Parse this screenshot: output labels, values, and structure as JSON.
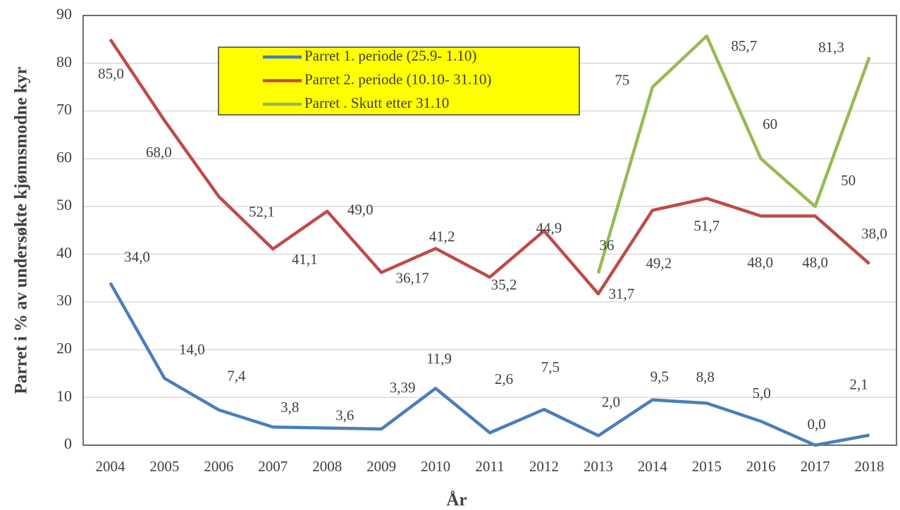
{
  "chart_data": {
    "type": "line",
    "y_label": "Parret i % av undersøkte kjønnsmodne kyr",
    "x_label": "År",
    "categories": [
      "2004",
      "2005",
      "2006",
      "2007",
      "2008",
      "2009",
      "2010",
      "2011",
      "2012",
      "2013",
      "2014",
      "2015",
      "2016",
      "2017",
      "2018"
    ],
    "series": [
      {
        "name": "Parret 1. periode (25.9- 1.10)",
        "color": "#4a7ebb",
        "values": [
          34.0,
          14.0,
          7.4,
          3.8,
          3.6,
          3.39,
          11.9,
          2.6,
          7.5,
          2.0,
          9.5,
          8.8,
          5.0,
          0.0,
          2.1
        ],
        "value_labels": [
          "34,0",
          "14,0",
          "7,4",
          "3,8",
          "3,6",
          "3,39",
          "11,9",
          "2,6",
          "7,5",
          "2,0",
          "9,5",
          "8,8",
          "5,0",
          "0,0",
          "2,1"
        ]
      },
      {
        "name": "Parret 2. periode (10.10- 31.10)",
        "color": "#be4b48",
        "values": [
          85.0,
          68.0,
          52.1,
          41.1,
          49.0,
          36.17,
          41.2,
          35.2,
          44.9,
          31.7,
          49.2,
          51.7,
          48.0,
          48.0,
          38.0
        ],
        "value_labels": [
          "85,0",
          "68,0",
          "52,1",
          "41,1",
          "49,0",
          "36,17",
          "41,2",
          "35,2",
          "44,9",
          "31,7",
          "49,2",
          "51,7",
          "48,0",
          "48,0",
          "38,0"
        ]
      },
      {
        "name": "Parret . Skutt etter 31.10",
        "color": "#98b954",
        "values": [
          null,
          null,
          null,
          null,
          null,
          null,
          null,
          null,
          null,
          36,
          75,
          85.7,
          60,
          50,
          81.3
        ],
        "value_labels": [
          null,
          null,
          null,
          null,
          null,
          null,
          null,
          null,
          null,
          "36",
          "75",
          "85,7",
          "60",
          "50",
          "81,3"
        ]
      }
    ],
    "ylim": [
      0,
      90
    ],
    "yticks": [
      0,
      10,
      20,
      30,
      40,
      50,
      60,
      70,
      80,
      90
    ],
    "grid": true,
    "legend_background": "#ffff00"
  }
}
